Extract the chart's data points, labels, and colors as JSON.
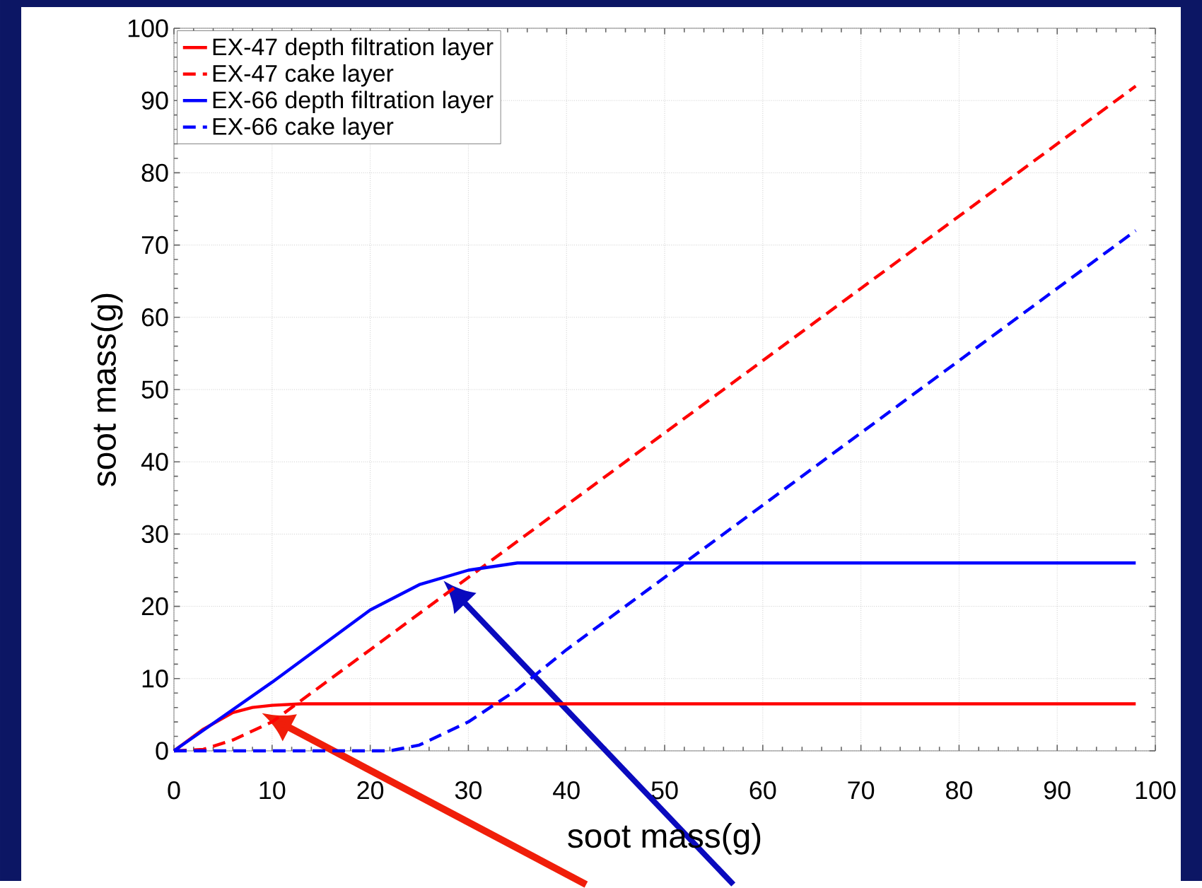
{
  "chart_data": {
    "type": "line",
    "xlabel": "soot mass(g)",
    "ylabel": "soot mass(g)",
    "xlim": [
      0,
      100
    ],
    "ylim": [
      0,
      100
    ],
    "xticks": [
      0,
      10,
      20,
      30,
      40,
      50,
      60,
      70,
      80,
      90,
      100
    ],
    "yticks": [
      0,
      10,
      20,
      30,
      40,
      50,
      60,
      70,
      80,
      90,
      100
    ],
    "grid": true,
    "legend": "top left",
    "marker": "none",
    "series": [
      {
        "name": "EX-47 depth filtration layer",
        "color": "#ff0000",
        "line_style": "solid",
        "x": [
          0,
          3,
          6,
          8,
          10,
          13,
          98
        ],
        "values": [
          0,
          3,
          5.3,
          6,
          6.3,
          6.5,
          6.5
        ]
      },
      {
        "name": "EX-47 cake layer",
        "color": "#ff0000",
        "line_style": "dashed",
        "x": [
          0,
          3,
          6,
          10,
          15,
          20,
          30,
          40,
          98
        ],
        "values": [
          0,
          0.2,
          1.5,
          4,
          9,
          14,
          24,
          34,
          92
        ]
      },
      {
        "name": "EX-66 depth filtration layer",
        "color": "#0000ff",
        "line_style": "solid",
        "x": [
          0,
          10,
          20,
          25,
          30,
          35,
          98
        ],
        "values": [
          0,
          9.5,
          19.5,
          23,
          25,
          26,
          26
        ]
      },
      {
        "name": "EX-66 cake layer",
        "color": "#0000ff",
        "line_style": "dashed",
        "x": [
          0,
          22,
          25,
          30,
          35,
          40,
          52,
          98
        ],
        "values": [
          0,
          0,
          0.8,
          4,
          8.5,
          14,
          26,
          72
        ]
      }
    ]
  }
}
